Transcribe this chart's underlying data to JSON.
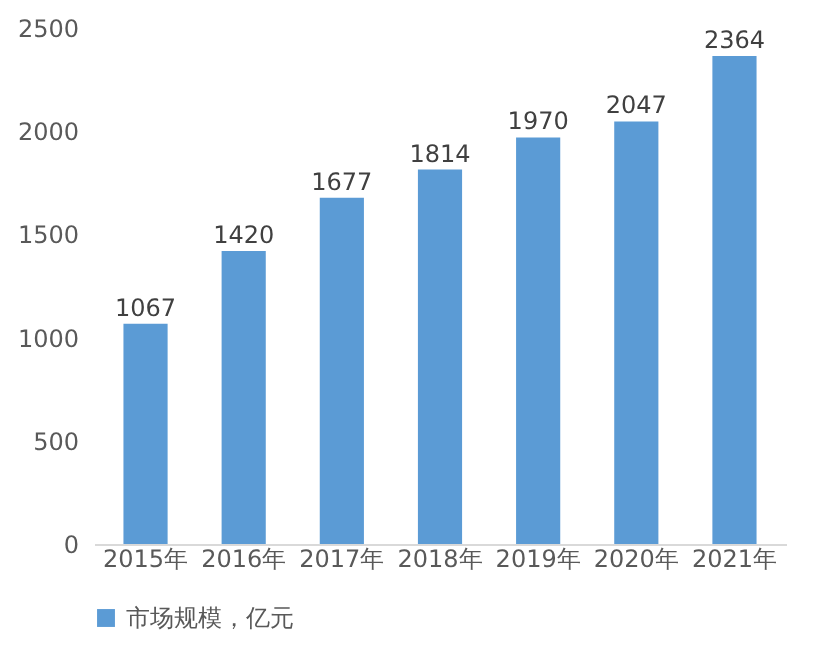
{
  "chart_data": {
    "type": "bar",
    "categories": [
      "2015年",
      "2016年",
      "2017年",
      "2018年",
      "2019年",
      "2020年",
      "2021年"
    ],
    "series": [
      {
        "name": "市场规模，亿元",
        "color": "#5b9bd5",
        "values": [
          1067,
          1420,
          1677,
          1814,
          1970,
          2047,
          2364
        ]
      }
    ],
    "ylim": [
      0,
      2500
    ],
    "yticks": [
      0,
      500,
      1000,
      1500,
      2000,
      2500
    ],
    "data_labels": true,
    "legend": "bottom",
    "grid": false
  }
}
